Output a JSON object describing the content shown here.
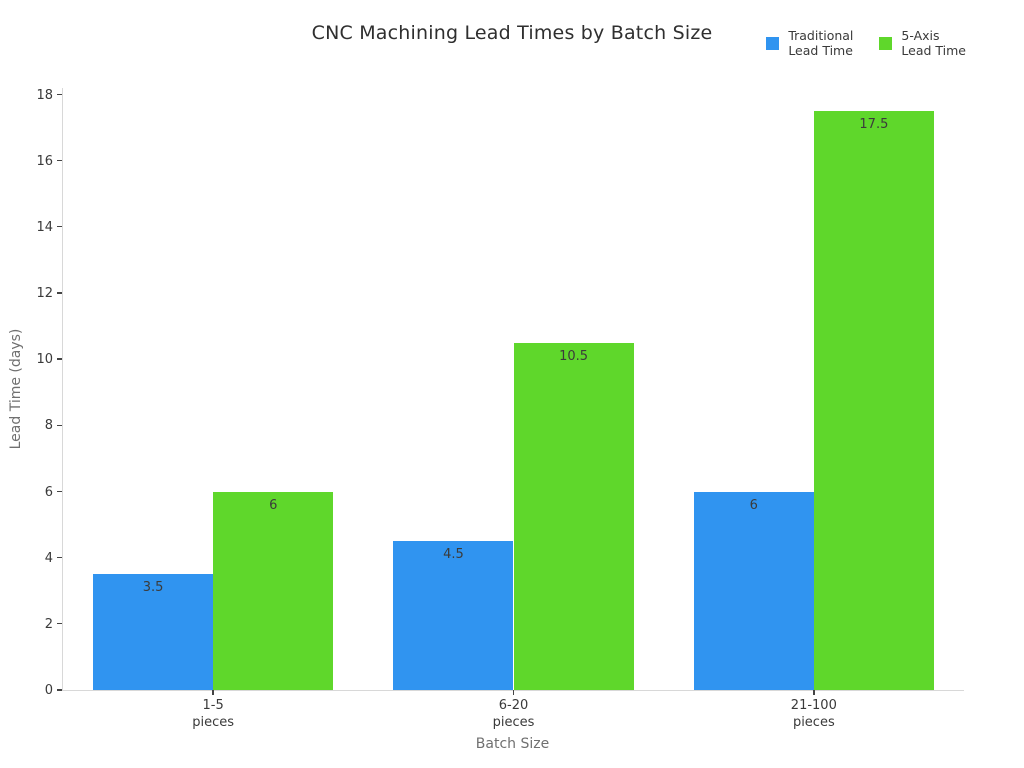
{
  "title": "CNC Machining Lead Times by Batch Size",
  "axes": {
    "xlabel": "Batch Size",
    "ylabel": "Lead Time (days)"
  },
  "chart_data": {
    "type": "bar",
    "title": "CNC Machining Lead Times by Batch Size",
    "xlabel": "Batch Size",
    "ylabel": "Lead Time (days)",
    "categories": [
      "1-5\npieces",
      "6-20\npieces",
      "21-100\npieces"
    ],
    "series": [
      {
        "name": "Traditional\nLead Time",
        "color": "#3094F0",
        "values": [
          3.5,
          4.5,
          6
        ]
      },
      {
        "name": "5-Axis\nLead Time",
        "color": "#5FD72B",
        "values": [
          6,
          10.5,
          17.5
        ]
      }
    ],
    "value_labels": [
      "3.5",
      "4.5",
      "6",
      "6",
      "10.5",
      "17.5"
    ],
    "yticks": [
      0,
      2,
      4,
      6,
      8,
      10,
      12,
      14,
      16,
      18
    ],
    "ylim": [
      0,
      18.2
    ],
    "grid": false,
    "legend_position": "top-right",
    "spine_color": "#d8d8d8",
    "tick_color": "#444444"
  }
}
